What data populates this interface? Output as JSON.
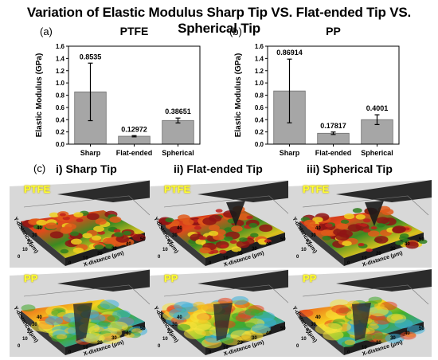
{
  "title": "Variation of Elastic Modulus Sharp Tip VS. Flat-ended Tip VS. Spherical Tip",
  "colors": {
    "bar": "#a6a6a6",
    "bar_edge": "#6f6f6f",
    "surface_label": "#ffff33"
  },
  "chart_data": [
    {
      "panel": "(a)",
      "type": "bar",
      "title": "PTFE",
      "ylabel": "Elastic Modulus (GPa)",
      "categories": [
        "Sharp",
        "Flat-ended",
        "Spherical"
      ],
      "values": [
        0.8535,
        0.12972,
        0.38651
      ],
      "value_labels": [
        "0.8535",
        "0.12972",
        "0.38651"
      ],
      "error": [
        0.47,
        0.01,
        0.04
      ],
      "ylim": [
        0,
        1.6
      ],
      "yticks": [
        "0.0",
        "0.2",
        "0.4",
        "0.6",
        "0.8",
        "1.0",
        "1.2",
        "1.4",
        "1.6"
      ],
      "grid": false
    },
    {
      "panel": "(b)",
      "type": "bar",
      "title": "PP",
      "ylabel": "Elastic Modulus (GPa)",
      "categories": [
        "Sharp",
        "Flat-ended",
        "Spherical"
      ],
      "values": [
        0.86914,
        0.17817,
        0.4001
      ],
      "value_labels": [
        "0.86914",
        "0.17817",
        "0.4001"
      ],
      "error": [
        0.52,
        0.02,
        0.08
      ],
      "ylim": [
        0,
        1.6
      ],
      "yticks": [
        "0.0",
        "0.2",
        "0.4",
        "0.6",
        "0.8",
        "1.0",
        "1.2",
        "1.4",
        "1.6"
      ],
      "grid": false
    }
  ],
  "panel_c": {
    "label": "(c)",
    "columns": [
      "i)  Sharp Tip",
      "ii)  Flat-ended Tip",
      "iii)  Spherical Tip"
    ],
    "rows": [
      "PTFE",
      "PP"
    ],
    "x_axis_label": "X-distance (μm)",
    "y_axis_label": "Y-distance (μm)",
    "tick_labels": [
      "0",
      "10",
      "20",
      "30",
      "40",
      "50"
    ]
  }
}
